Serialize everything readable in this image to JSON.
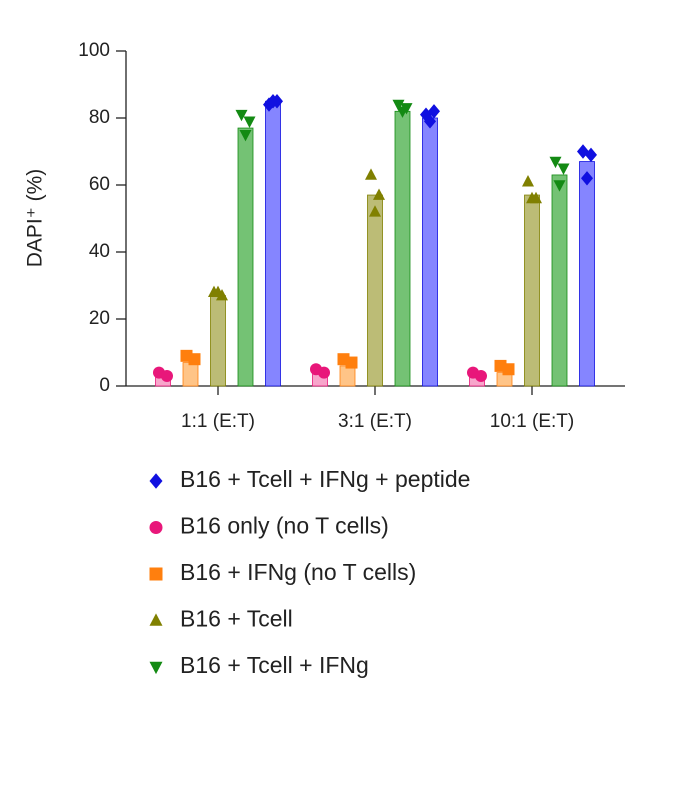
{
  "chart_data": {
    "type": "bar",
    "y_label": "DAPI⁺ (%)",
    "categories": [
      "1:1 (E:T)",
      "3:1 (E:T)",
      "10:1 (E:T)"
    ],
    "ylim": [
      0,
      100
    ],
    "yticks": [
      0,
      20,
      40,
      60,
      80,
      100
    ],
    "legend_order": [
      4,
      0,
      1,
      2,
      3
    ],
    "series": [
      {
        "name": "B16 only (no T cells)",
        "color": "#e8177a",
        "bar_color": "#f7a6cb",
        "marker": "circle",
        "values": [
          3,
          4,
          3
        ],
        "points": [
          [
            4,
            3
          ],
          [
            5,
            4
          ],
          [
            4,
            3
          ]
        ]
      },
      {
        "name": "B16 + IFNg (no T cells)",
        "color": "#ff7f0e",
        "bar_color": "#ffc487",
        "marker": "square",
        "values": [
          7,
          6,
          4
        ],
        "points": [
          [
            9,
            8
          ],
          [
            8,
            7
          ],
          [
            6,
            5
          ]
        ]
      },
      {
        "name": "B16 + Tcell",
        "color": "#808000",
        "bar_color": "#bcbc76",
        "marker": "triangle-up",
        "values": [
          27,
          57,
          57
        ],
        "points": [
          [
            28,
            27,
            28
          ],
          [
            63,
            57,
            52
          ],
          [
            61,
            56,
            56
          ]
        ]
      },
      {
        "name": "B16 + Tcell + IFNg",
        "color": "#138a13",
        "bar_color": "#74c274",
        "marker": "triangle-down",
        "values": [
          77,
          82,
          63
        ],
        "points": [
          [
            81,
            79,
            75
          ],
          [
            84,
            83,
            82
          ],
          [
            67,
            65,
            60
          ]
        ]
      },
      {
        "name": "B16 + Tcell + IFNg + peptide",
        "color": "#1010e0",
        "bar_color": "#8585ff",
        "marker": "diamond",
        "values": [
          85,
          80,
          67
        ],
        "points": [
          [
            84,
            85,
            85
          ],
          [
            81,
            82,
            79
          ],
          [
            70,
            69,
            62
          ]
        ]
      }
    ]
  }
}
